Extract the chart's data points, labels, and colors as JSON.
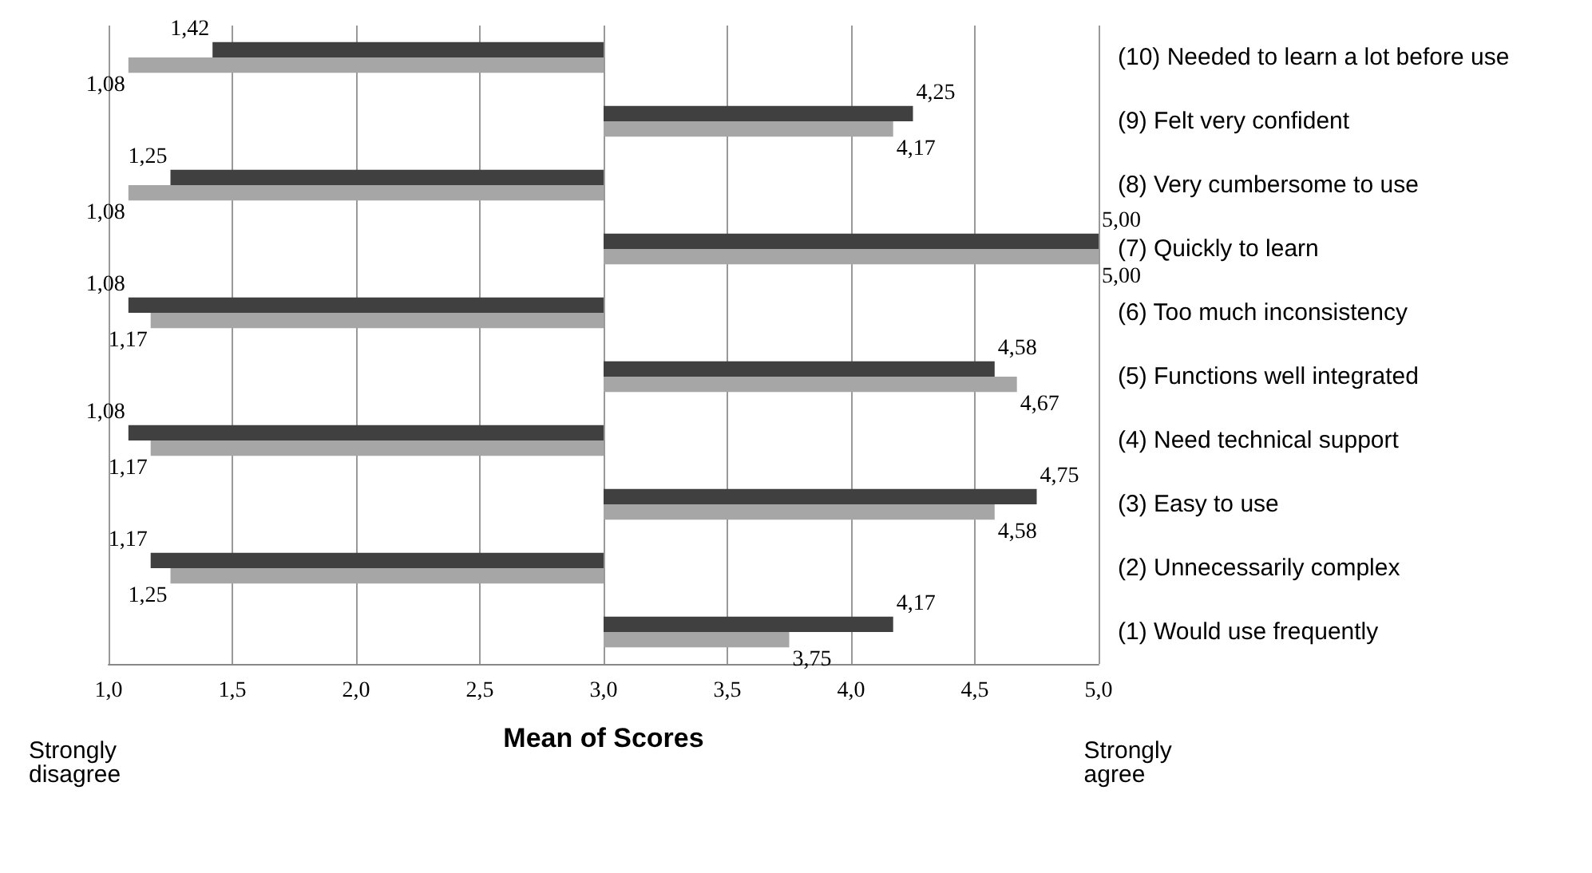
{
  "chart_data": {
    "type": "bar",
    "orientation": "horizontal",
    "xlabel": "Mean of Scores",
    "categories": [
      "(10) Needed to learn a lot before use",
      "(9) Felt very confident",
      "(8) Very cumbersome to use",
      "(7) Quickly to learn",
      "(6) Too much inconsistency",
      "(5) Functions well integrated",
      "(4) Need technical support",
      "(3) Easy to use",
      "(2) Unnecessarily complex",
      "(1) Would use frequently"
    ],
    "series": [
      {
        "color": "#404040",
        "base": [
          3,
          3,
          3,
          3,
          3,
          3,
          3,
          3,
          3,
          3
        ],
        "values": [
          -1.58,
          1.25,
          -1.75,
          2.0,
          -1.92,
          1.58,
          -1.92,
          1.75,
          -1.83,
          1.17
        ],
        "value_labels": [
          "1,42",
          "4,25",
          "1,25",
          "5,00",
          "1,08",
          "4,58",
          "1,08",
          "4,75",
          "1,17",
          "4,17"
        ]
      },
      {
        "color": "#a6a6a6",
        "base": [
          3,
          3,
          3,
          3,
          3,
          3,
          3,
          3,
          3,
          3
        ],
        "values": [
          -1.92,
          1.17,
          -1.92,
          2.0,
          -1.83,
          1.67,
          -1.83,
          1.58,
          -1.75,
          0.75
        ],
        "value_labels": [
          "1,08",
          "4,17",
          "1,08",
          "5,00",
          "1,17",
          "4,67",
          "1,17",
          "4,58",
          "1,25",
          "3,75"
        ]
      }
    ],
    "xlim": [
      1,
      5
    ],
    "xticks": [
      {
        "value": 1,
        "label": "1,0"
      },
      {
        "value": 1.5,
        "label": "1,5"
      },
      {
        "value": 2,
        "label": "2,0"
      },
      {
        "value": 2.5,
        "label": "2,5"
      },
      {
        "value": 3,
        "label": "3,0"
      },
      {
        "value": 3.5,
        "label": "3,5"
      },
      {
        "value": 4,
        "label": "4,0"
      },
      {
        "value": 4.5,
        "label": "4,5"
      },
      {
        "value": 5,
        "label": "5,0"
      }
    ],
    "grid": "x",
    "annotations": [
      "Strongly disagree",
      "Strongly agree"
    ]
  }
}
